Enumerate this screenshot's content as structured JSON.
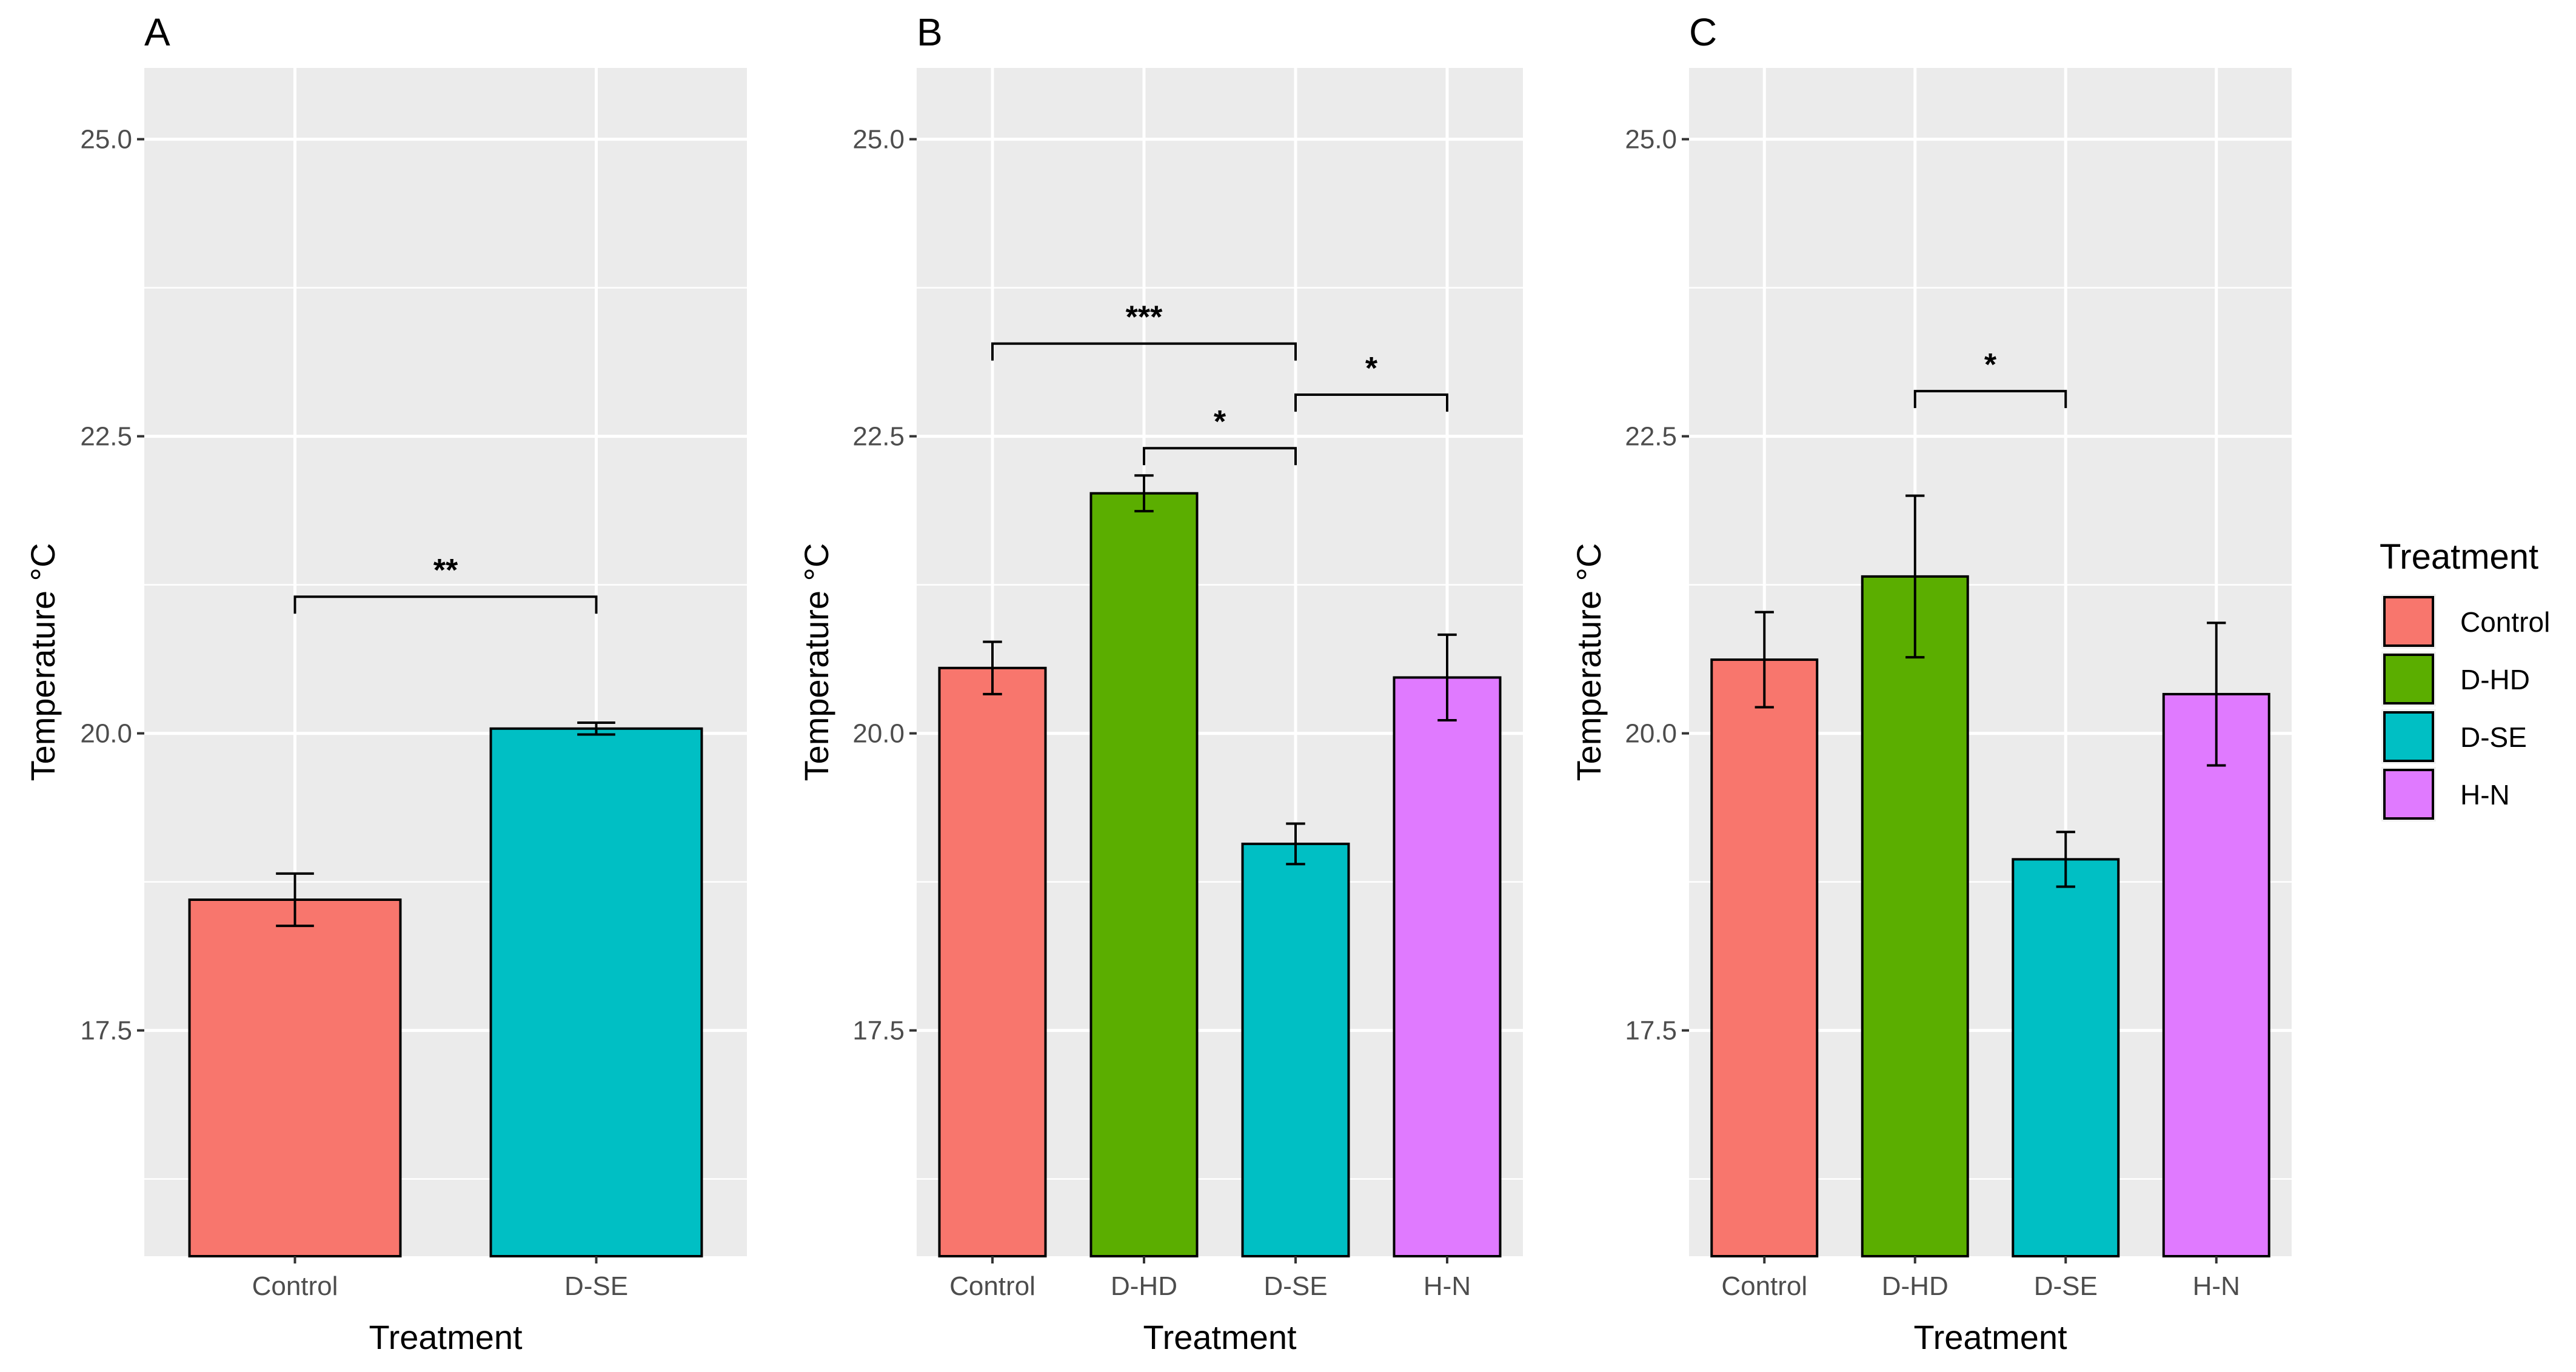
{
  "legend": {
    "title": "Treatment",
    "items": [
      {
        "label": "Control",
        "color": "#F8766D"
      },
      {
        "label": "D-HD",
        "color": "#5BAE00"
      },
      {
        "label": "D-SE",
        "color": "#00BFC4"
      },
      {
        "label": "H-N",
        "color": "#E07AFF"
      }
    ]
  },
  "chart_data": [
    {
      "type": "bar",
      "panel_label": "A",
      "categories": [
        "Control",
        "D-SE"
      ],
      "values": [
        18.6,
        20.04
      ],
      "errors": [
        0.22,
        0.05
      ],
      "colors": [
        "#F8766D",
        "#00BFC4"
      ],
      "xlabel": "Treatment",
      "ylabel": "Temperature °C",
      "ylim": [
        15.6,
        25.6
      ],
      "yticks": [
        "17.5",
        "20.0",
        "22.5",
        "25.0"
      ],
      "significance": [
        {
          "from": 0,
          "to": 1,
          "y": 21.15,
          "label": "**"
        }
      ]
    },
    {
      "type": "bar",
      "panel_label": "B",
      "categories": [
        "Control",
        "D-HD",
        "D-SE",
        "H-N"
      ],
      "values": [
        20.55,
        22.02,
        19.07,
        20.47
      ],
      "errors": [
        0.22,
        0.15,
        0.17,
        0.36
      ],
      "colors": [
        "#F8766D",
        "#5BAE00",
        "#00BFC4",
        "#E07AFF"
      ],
      "xlabel": "Treatment",
      "ylabel": "Temperature °C",
      "ylim": [
        15.6,
        25.6
      ],
      "yticks": [
        "17.5",
        "20.0",
        "22.5",
        "25.0"
      ],
      "significance": [
        {
          "from": 0,
          "to": 2,
          "y": 23.28,
          "label": "***"
        },
        {
          "from": 1,
          "to": 2,
          "y": 22.4,
          "label": "*"
        },
        {
          "from": 2,
          "to": 3,
          "y": 22.85,
          "label": "*"
        }
      ]
    },
    {
      "type": "bar",
      "panel_label": "C",
      "categories": [
        "Control",
        "D-HD",
        "D-SE",
        "H-N"
      ],
      "values": [
        20.62,
        21.32,
        18.94,
        20.33
      ],
      "errors": [
        0.4,
        0.68,
        0.23,
        0.6
      ],
      "colors": [
        "#F8766D",
        "#5BAE00",
        "#00BFC4",
        "#E07AFF"
      ],
      "xlabel": "Treatment",
      "ylabel": "Temperature °C",
      "ylim": [
        15.6,
        25.6
      ],
      "yticks": [
        "17.5",
        "20.0",
        "22.5",
        "25.0"
      ],
      "significance": [
        {
          "from": 1,
          "to": 2,
          "y": 22.88,
          "label": "*"
        }
      ]
    }
  ]
}
